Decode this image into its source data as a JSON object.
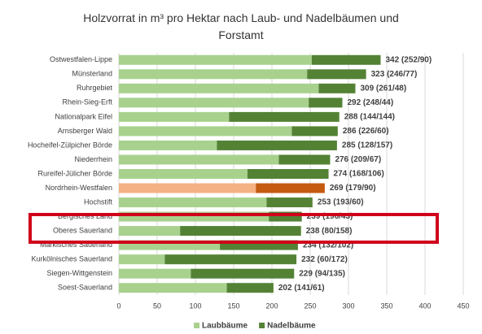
{
  "chart_data": {
    "type": "stacked-barh",
    "title": "Holzvorrat in m³ pro Hektar nach Laub- und Nadelbäumen und Forstamt",
    "categories": [
      "Ostwestfalen-Lippe",
      "Münsterland",
      "Ruhrgebiet",
      "Rhein-Sieg-Erft",
      "Nationalpark Eifel",
      "Arnsberger Wald",
      "Hocheifel-Zülpicher Börde",
      "Niederrhein",
      "Rureifel-Jülicher Börde",
      "Nordrhein-Westfalen",
      "Hochstift",
      "Bergisches Land",
      "Oberes Sauerland",
      "Märkisches Sauerland",
      "Kurkölnisches Sauerland",
      "Siegen-Wittgenstein",
      "Soest-Sauerland"
    ],
    "series": [
      {
        "name": "Laubbäume",
        "color": "#a9d18e",
        "values": [
          252,
          246,
          261,
          248,
          144,
          226,
          128,
          209,
          168,
          179,
          193,
          196,
          80,
          132,
          60,
          94,
          141
        ],
        "colors": [
          "#a9d18e",
          "#a9d18e",
          "#a9d18e",
          "#a9d18e",
          "#a9d18e",
          "#a9d18e",
          "#a9d18e",
          "#a9d18e",
          "#a9d18e",
          "#f4b183",
          "#a9d18e",
          "#a9d18e",
          "#a9d18e",
          "#a9d18e",
          "#a9d18e",
          "#a9d18e",
          "#a9d18e"
        ]
      },
      {
        "name": "Nadelbäume",
        "color": "#548235",
        "values": [
          90,
          77,
          48,
          44,
          144,
          60,
          157,
          67,
          106,
          90,
          60,
          43,
          158,
          102,
          172,
          135,
          61
        ],
        "colors": [
          "#548235",
          "#548235",
          "#548235",
          "#548235",
          "#548235",
          "#548235",
          "#548235",
          "#548235",
          "#548235",
          "#c55a11",
          "#548235",
          "#548235",
          "#548235",
          "#548235",
          "#548235",
          "#548235",
          "#548235"
        ]
      }
    ],
    "totals": [
      342,
      323,
      309,
      292,
      288,
      286,
      285,
      276,
      274,
      269,
      253,
      239,
      238,
      234,
      232,
      229,
      202
    ],
    "value_labels": [
      "342 (252/90)",
      "323 (246/77)",
      "309 (261/48)",
      "292 (248/44)",
      "288 (144/144)",
      "286 (226/60)",
      "285 (128/157)",
      "276 (209/67)",
      "274 (168/106)",
      "269 (179/90)",
      "253 (193/60)",
      "239 (196/43)",
      "238 (80/158)",
      "234 (132/102)",
      "232 (60/172)",
      "229 (94/135)",
      "202 (141/61)"
    ],
    "xlim": [
      0,
      450
    ],
    "xticks": [
      0,
      50,
      100,
      150,
      200,
      250,
      300,
      350,
      400,
      450
    ],
    "grid": true,
    "legend": "bottom"
  }
}
